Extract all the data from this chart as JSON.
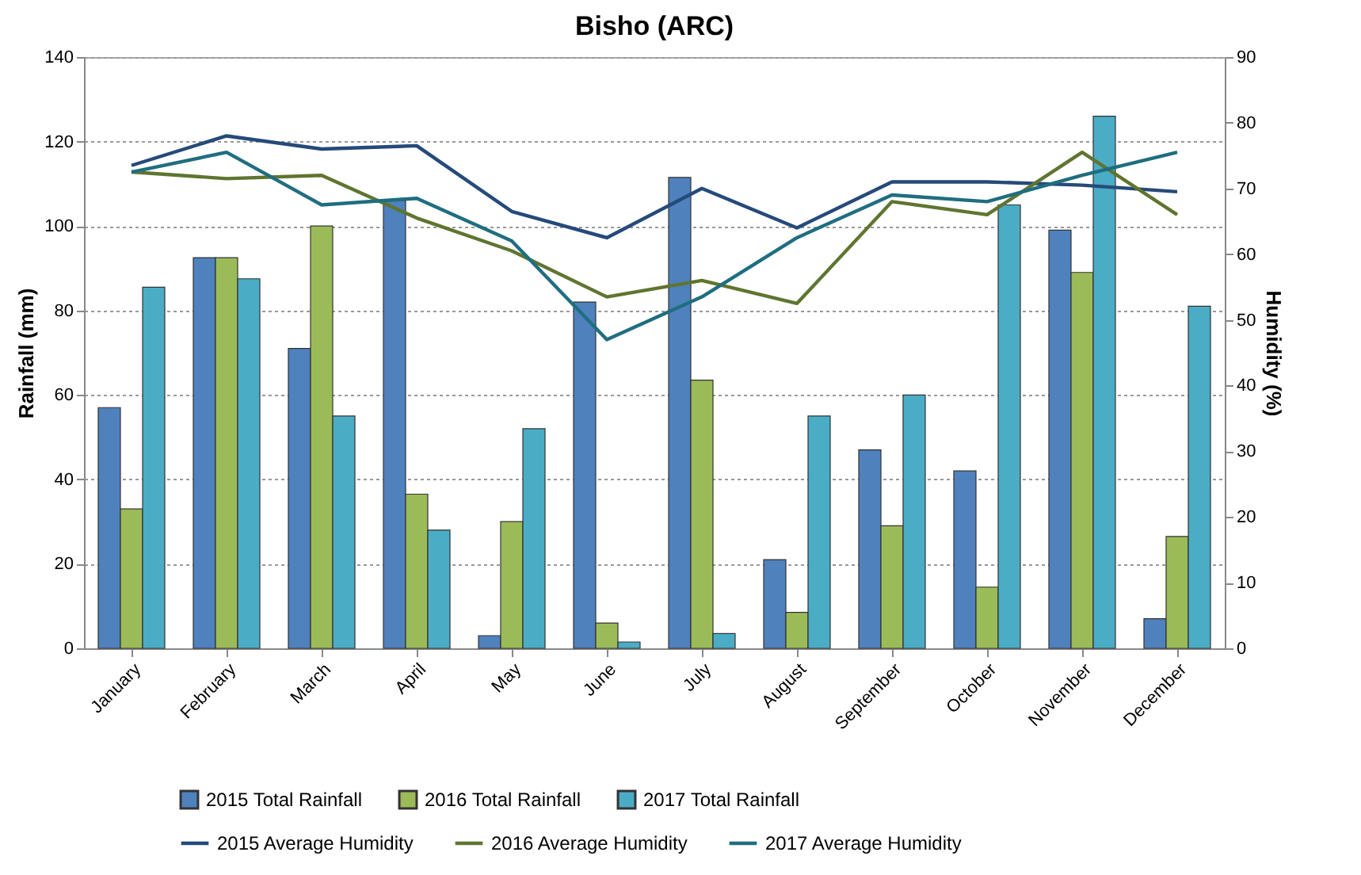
{
  "chart_data": {
    "type": "bar",
    "title": "Bisho (ARC)",
    "ylabel": "Rainfall (mm)",
    "y2label": "Humidity (%)",
    "categories": [
      "January",
      "February",
      "March",
      "April",
      "May",
      "June",
      "July",
      "August",
      "September",
      "October",
      "November",
      "December"
    ],
    "ylim": [
      0,
      140
    ],
    "yticks": [
      0,
      20,
      40,
      60,
      80,
      100,
      120,
      140
    ],
    "y2lim": [
      0,
      90
    ],
    "y2ticks": [
      0,
      10,
      20,
      30,
      40,
      50,
      60,
      70,
      80,
      90
    ],
    "grid": "y",
    "legend": "bottom",
    "series": [
      {
        "name": "2015 Total Rainfall",
        "color": "#4f81bd",
        "values": [
          57,
          92.5,
          71,
          106,
          3,
          82,
          111.5,
          21,
          47,
          42,
          99,
          7
        ]
      },
      {
        "name": "2016 Total Rainfall",
        "color": "#9bbb59",
        "values": [
          33,
          92.5,
          100,
          36.5,
          30,
          6,
          63.5,
          8.5,
          29,
          14.5,
          89,
          26.5
        ]
      },
      {
        "name": "2017 Total Rainfall",
        "color": "#4bacc6",
        "values": [
          85.5,
          87.5,
          55,
          28,
          52,
          1.5,
          3.5,
          55,
          60,
          105,
          126,
          81
        ]
      },
      {
        "name": "2015 Average Humidity",
        "type": "line",
        "axis": "y2",
        "color": "#254a7a",
        "values": [
          73.5,
          78,
          76,
          76.5,
          66.5,
          62.5,
          70,
          64,
          71,
          71,
          70.5,
          69.5
        ]
      },
      {
        "name": "2016 Average Humidity",
        "type": "line",
        "axis": "y2",
        "color": "#5f7530",
        "values": [
          72.5,
          71.5,
          72,
          65.5,
          60.5,
          53.5,
          56,
          52.5,
          68,
          66,
          75.5,
          66
        ]
      },
      {
        "name": "2017 Average Humidity",
        "type": "line",
        "axis": "y2",
        "color": "#1f6e80",
        "values": [
          72.5,
          75.5,
          67.5,
          68.5,
          62,
          47,
          53.5,
          62.5,
          69,
          68,
          72,
          75.5
        ]
      }
    ]
  }
}
